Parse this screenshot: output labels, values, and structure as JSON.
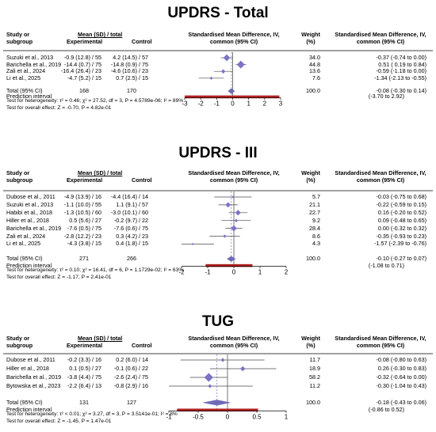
{
  "panels": [
    {
      "title": "UPDRS - Total",
      "header": {
        "study": "Study or",
        "subgroup": "subgroup",
        "group_label": "Mean (SD) / total",
        "experimental": "Experimental",
        "control": "Control",
        "smd_line1": "Standardised Mean Difference, IV,",
        "smd_line2": "common (95% CI)",
        "weight_line1": "Weight",
        "weight_line2": "(%)",
        "ci_line1": "Standardised Mean Difference, IV,",
        "ci_line2": "common (95% CI)"
      },
      "studies": [
        {
          "name": "Suzuki et al., 2013",
          "exp": "-0.9 (12.8) / 55",
          "ctrl": "4.2 (14.5) / 57",
          "weight": "34.0",
          "ci_text": "-0.37 (-0.74 to  0.00)"
        },
        {
          "name": "Barichella et al., 2019",
          "exp": "-14.4 (0.7) / 75",
          "ctrl": "-14.8 (0.9) / 75",
          "weight": "44.8",
          "ci_text": "0.51 ( 0.19 to  0.84)"
        },
        {
          "name": "Zali et al., 2024",
          "exp": "-16.4 (26.4) / 23",
          "ctrl": "-4.6 (10.6) / 23",
          "weight": "13.6",
          "ci_text": "-0.59 (-1.18 to  0.00)"
        },
        {
          "name": "Li et al., 2025",
          "exp": "-4.7 (5.2) / 15",
          "ctrl": "0.7 (2.5) / 15",
          "weight": "7.6",
          "ci_text": "-1.34 (-2.13 to -0.55)"
        }
      ],
      "total": {
        "label": "Total (95% CI)",
        "exp_n": "168",
        "ctrl_n": "170",
        "weight": "100.0",
        "ci_text": "-0.08 (-0.30 to  0.14)"
      },
      "prediction": {
        "label": "Prediction interval",
        "ci_text": "(-3.70 to  2.92)"
      },
      "heterogeneity": "Test for heterogeneity: τ² = 0.46; χ² = 27.52, df = 3, P = 4.5789e-06; I² = 89%",
      "overall": "Test for overall effect: Z = -0.70, P = 4.82e-01",
      "axis_ticks": [
        "-3",
        "-2",
        "-1",
        "0",
        "1",
        "2",
        "3"
      ]
    },
    {
      "title": "UPDRS - III",
      "header": {
        "study": "Study or",
        "subgroup": "subgroup",
        "group_label": "Mean (SD) / total",
        "experimental": "Experimental",
        "control": "Control",
        "smd_line1": "Standardised Mean Difference, IV,",
        "smd_line2": "common (95% CI)",
        "weight_line1": "Weight",
        "weight_line2": "(%)",
        "ci_line1": "Standardised Mean Difference, IV,",
        "ci_line2": "common (95% CI)"
      },
      "studies": [
        {
          "name": "Dubose et al., 2011",
          "exp": "-4.9 (13.9) / 16",
          "ctrl": "-4.4 (16.4) / 14",
          "weight": "5.7",
          "ci_text": "-0.03 (-0.75 to  0.68)"
        },
        {
          "name": "Suzuki et al., 2013",
          "exp": "-1.1 (10.0) / 55",
          "ctrl": "1.1 (9.1) / 57",
          "weight": "21.1",
          "ci_text": "-0.22 (-0.59 to  0.15)"
        },
        {
          "name": "Habibi et al., 2018",
          "exp": "-1.3 (10.5) / 60",
          "ctrl": "-3.0 (10.1) / 60",
          "weight": "22.7",
          "ci_text": "0.16 (-0.20 to  0.52)"
        },
        {
          "name": "Hiller et al., 2018",
          "exp": "0.5 (5.6) / 27",
          "ctrl": "-0.2 (9.7) / 22",
          "weight": "9.2",
          "ci_text": "0.09 (-0.48 to  0.65)"
        },
        {
          "name": "Barichella et al., 2019",
          "exp": "-7.6 (0.5) / 75",
          "ctrl": "-7.6 (0.6) / 75",
          "weight": "28.4",
          "ci_text": "0.00 (-0.32 to  0.32)"
        },
        {
          "name": "Zali et al., 2024",
          "exp": "-2.8 (12.2) / 23",
          "ctrl": "0.3 (4.2) / 23",
          "weight": "8.6",
          "ci_text": "-0.35 (-0.93 to  0.23)"
        },
        {
          "name": "Li et al., 2025",
          "exp": "-4.3 (3.8) / 15",
          "ctrl": "0.4 (1.8) / 15",
          "weight": "4.3",
          "ci_text": "-1.57 (-2.39 to -0.76)"
        }
      ],
      "total": {
        "label": "Total (95% CI)",
        "exp_n": "271",
        "ctrl_n": "266",
        "weight": "100.0",
        "ci_text": "-0.10 (-0.27 to  0.07)"
      },
      "prediction": {
        "label": "Prediction interval",
        "ci_text": "(-1.08 to  0.71)"
      },
      "heterogeneity": "Test for heterogeneity: τ² = 0.10; χ² = 16.41, df = 6, P = 1.1729e-02; I² = 63%",
      "overall": "Test for overall effect: Z = -1.17, P = 2.41e-01",
      "axis_ticks": [
        "-2",
        "-1",
        "0",
        "1",
        "2"
      ]
    },
    {
      "title": "TUG",
      "header": {
        "study": "Study or",
        "subgroup": "subgroup",
        "group_label": "Mean (SD) / total",
        "experimental": "Experimental",
        "control": "Control",
        "smd_line1": "Standardised Mean Difference, IV,",
        "smd_line2": "common (95% CI)",
        "weight_line1": "Weight",
        "weight_line2": "(%)",
        "ci_line1": "Standardised Mean Difference, IV,",
        "ci_line2": "common (95% CI)"
      },
      "studies": [
        {
          "name": "Dubose et al., 2011",
          "exp": "-0.2 (3.3) / 16",
          "ctrl": "0.2 (6.0) / 14",
          "weight": "11.7",
          "ci_text": "-0.08 (-0.80 to  0.63)"
        },
        {
          "name": "Hiller et al., 2018",
          "exp": "0.1 (0.5) / 27",
          "ctrl": "-0.1 (0.6) / 22",
          "weight": "18.9",
          "ci_text": "0.26 (-0.30 to  0.83)"
        },
        {
          "name": "Barichella et al., 2019",
          "exp": "-3.8 (4.4) / 75",
          "ctrl": "-2.6 (2.4) / 75",
          "weight": "58.2",
          "ci_text": "-0.32 (-0.64 to  0.00)"
        },
        {
          "name": "Bytowska et al., 2023",
          "exp": "-2.2 (6.4) / 13",
          "ctrl": "-0.8 (2.9) / 16",
          "weight": "11.2",
          "ci_text": "-0.30 (-1.04 to  0.43)"
        }
      ],
      "total": {
        "label": "Total (95% CI)",
        "exp_n": "131",
        "ctrl_n": "127",
        "weight": "100.0",
        "ci_text": "-0.18 (-0.43 to  0.06)"
      },
      "prediction": {
        "label": "Prediction interval",
        "ci_text": "(-0.86 to  0.52)"
      },
      "heterogeneity": "Test for heterogeneity: τ² < 0.01; χ² = 3.27, df = 3, P = 3.5141e-01; I² = 8%",
      "overall": "Test for overall effect: Z = -1.45, P = 1.47e-01",
      "axis_ticks": [
        "-1",
        "-0.5",
        "0",
        "0.5",
        "1"
      ]
    }
  ],
  "chart_data": [
    {
      "type": "forest",
      "title": "UPDRS - Total",
      "xlim": [
        -3,
        3
      ],
      "studies": [
        {
          "name": "Suzuki et al., 2013",
          "smd": -0.37,
          "lo": -0.74,
          "hi": 0.0,
          "weight": 34.0
        },
        {
          "name": "Barichella et al., 2019",
          "smd": 0.51,
          "lo": 0.19,
          "hi": 0.84,
          "weight": 44.8
        },
        {
          "name": "Zali et al., 2024",
          "smd": -0.59,
          "lo": -1.18,
          "hi": 0.0,
          "weight": 13.6
        },
        {
          "name": "Li et al., 2025",
          "smd": -1.34,
          "lo": -2.13,
          "hi": -0.55,
          "weight": 7.6
        }
      ],
      "total": {
        "smd": -0.08,
        "lo": -0.3,
        "hi": 0.14
      },
      "prediction": {
        "lo": -3.7,
        "hi": 2.92
      }
    },
    {
      "type": "forest",
      "title": "UPDRS - III",
      "xlim": [
        -2,
        2
      ],
      "studies": [
        {
          "name": "Dubose et al., 2011",
          "smd": -0.03,
          "lo": -0.75,
          "hi": 0.68,
          "weight": 5.7
        },
        {
          "name": "Suzuki et al., 2013",
          "smd": -0.22,
          "lo": -0.59,
          "hi": 0.15,
          "weight": 21.1
        },
        {
          "name": "Habibi et al., 2018",
          "smd": 0.16,
          "lo": -0.2,
          "hi": 0.52,
          "weight": 22.7
        },
        {
          "name": "Hiller et al., 2018",
          "smd": 0.09,
          "lo": -0.48,
          "hi": 0.65,
          "weight": 9.2
        },
        {
          "name": "Barichella et al., 2019",
          "smd": 0.0,
          "lo": -0.32,
          "hi": 0.32,
          "weight": 28.4
        },
        {
          "name": "Zali et al., 2024",
          "smd": -0.35,
          "lo": -0.93,
          "hi": 0.23,
          "weight": 8.6
        },
        {
          "name": "Li et al., 2025",
          "smd": -1.57,
          "lo": -2.39,
          "hi": -0.76,
          "weight": 4.3
        }
      ],
      "total": {
        "smd": -0.1,
        "lo": -0.27,
        "hi": 0.07
      },
      "prediction": {
        "lo": -1.08,
        "hi": 0.71
      }
    },
    {
      "type": "forest",
      "title": "TUG",
      "xlim": [
        -1,
        1
      ],
      "studies": [
        {
          "name": "Dubose et al., 2011",
          "smd": -0.08,
          "lo": -0.8,
          "hi": 0.63,
          "weight": 11.7
        },
        {
          "name": "Hiller et al., 2018",
          "smd": 0.26,
          "lo": -0.3,
          "hi": 0.83,
          "weight": 18.9
        },
        {
          "name": "Barichella et al., 2019",
          "smd": -0.32,
          "lo": -0.64,
          "hi": 0.0,
          "weight": 58.2
        },
        {
          "name": "Bytowska et al., 2023",
          "smd": -0.3,
          "lo": -1.04,
          "hi": 0.43,
          "weight": 11.2
        }
      ],
      "total": {
        "smd": -0.18,
        "lo": -0.43,
        "hi": 0.06
      },
      "prediction": {
        "lo": -0.86,
        "hi": 0.52
      }
    }
  ],
  "colors": {
    "square": "#7b74c4",
    "diamond": "#6f6ab8",
    "ci_line": "#4a4a4a",
    "prediction_bar": "#b22222",
    "null_line": "#555555",
    "pooled_line": "#7b74c4"
  }
}
